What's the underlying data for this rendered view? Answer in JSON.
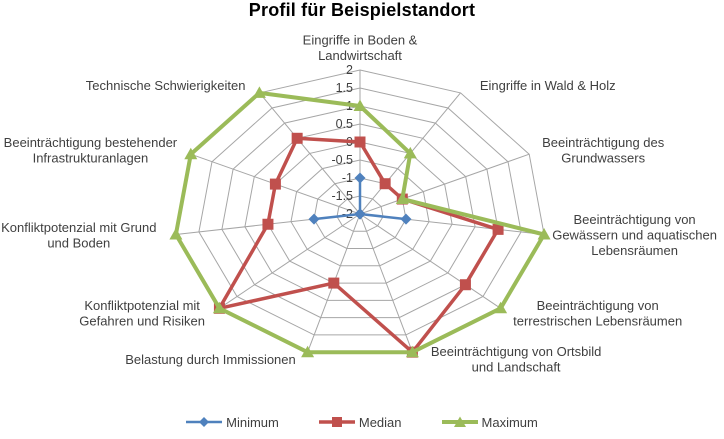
{
  "title": "Profil für Beispielstandort",
  "chart_data": {
    "type": "radar",
    "categories": [
      "Eingriffe in Boden &\nLandwirtschaft",
      "Eingriffe in Wald & Holz",
      "Beeinträchtigung des\nGrundwassers",
      "Beeinträchtigung von\nGewässern und aquatischen\nLebensräumen",
      "Beeinträchtigung von\nterrestrischen Lebensräumen",
      "Beeinträchtigung von Ortsbild\nund Landschaft",
      "Belastung durch Immissionen",
      "Konfliktpotenzial mit\nGefahren und Risiken",
      "Konfliktpotenzial mit Grund\nund Boden",
      "Beeinträchtigung bestehender\nInfrastrukturanlagen",
      "Technische Schwierigkeiten"
    ],
    "axis_range": {
      "min": -2,
      "max": 2,
      "step": 0.5
    },
    "tick_labels": [
      "2",
      "1.5",
      "1",
      "0.5",
      "0",
      "-0.5",
      "-1",
      "-1.5",
      "-2"
    ],
    "series": [
      {
        "name": "Minimum",
        "marker": "diamond",
        "color": "#4F81BD",
        "values": [
          -1,
          -2,
          -2,
          -1,
          -2,
          -2,
          -2,
          -2,
          -1,
          -2,
          -2
        ]
      },
      {
        "name": "Median",
        "marker": "square",
        "color": "#C0504D",
        "values": [
          0,
          -1,
          -1,
          1,
          1,
          2,
          0,
          2,
          0,
          0,
          0.5
        ]
      },
      {
        "name": "Maximum",
        "marker": "triangle",
        "color": "#9BBB59",
        "values": [
          1,
          0,
          -1,
          2,
          2,
          2,
          2,
          2,
          2,
          2,
          2
        ]
      }
    ],
    "grid_color": "#A6A6A6",
    "label_color": "#404040",
    "legend_position": "bottom"
  }
}
